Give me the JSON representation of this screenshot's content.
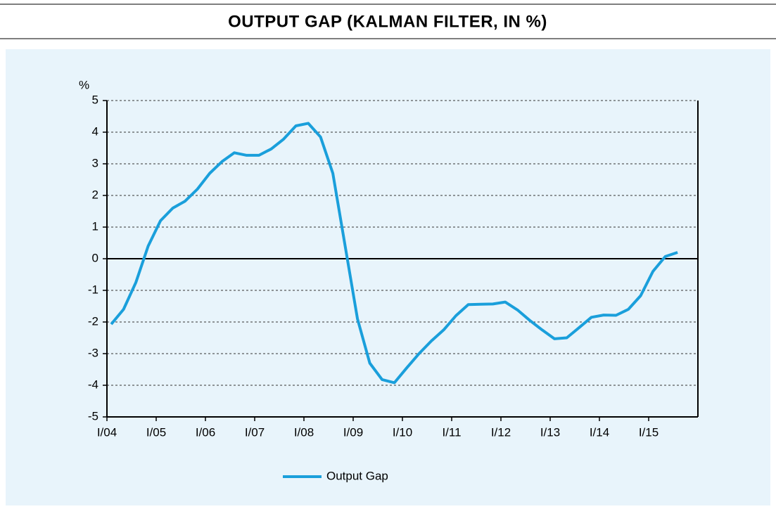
{
  "chart_data": {
    "type": "line",
    "title": "OUTPUT GAP (KALMAN FILTER, IN %)",
    "y_label": "%",
    "categories": [
      "I/04",
      null,
      null,
      null,
      "I/05",
      null,
      null,
      null,
      "I/06",
      null,
      null,
      null,
      "I/07",
      null,
      null,
      null,
      "I/08",
      null,
      null,
      null,
      "I/09",
      null,
      null,
      null,
      "I/10",
      null,
      null,
      null,
      "I/11",
      null,
      null,
      null,
      "I/12",
      null,
      null,
      null,
      "I/13",
      null,
      null,
      null,
      "I/14",
      null,
      null,
      null,
      "I/15",
      null,
      null
    ],
    "series": [
      {
        "name": "Output Gap",
        "color": "#1a9fdb",
        "values": [
          -2.07,
          -1.6,
          -0.75,
          0.4,
          1.2,
          1.6,
          1.82,
          2.2,
          2.7,
          3.07,
          3.35,
          3.27,
          3.27,
          3.47,
          3.78,
          4.2,
          4.28,
          3.85,
          2.7,
          0.4,
          -1.9,
          -3.3,
          -3.82,
          -3.92,
          -3.45,
          -3.0,
          -2.6,
          -2.25,
          -1.8,
          -1.45,
          -1.44,
          -1.43,
          -1.37,
          -1.62,
          -1.95,
          -2.25,
          -2.53,
          -2.5,
          -2.18,
          -1.85,
          -1.78,
          -1.79,
          -1.6,
          -1.17,
          -0.4,
          0.07,
          0.2
        ]
      }
    ],
    "ylim": [
      -5,
      5
    ],
    "yticks": [
      -5,
      -4,
      -3,
      -2,
      -1,
      0,
      1,
      2,
      3,
      4,
      5
    ],
    "grid": true,
    "legend": "bottom"
  }
}
